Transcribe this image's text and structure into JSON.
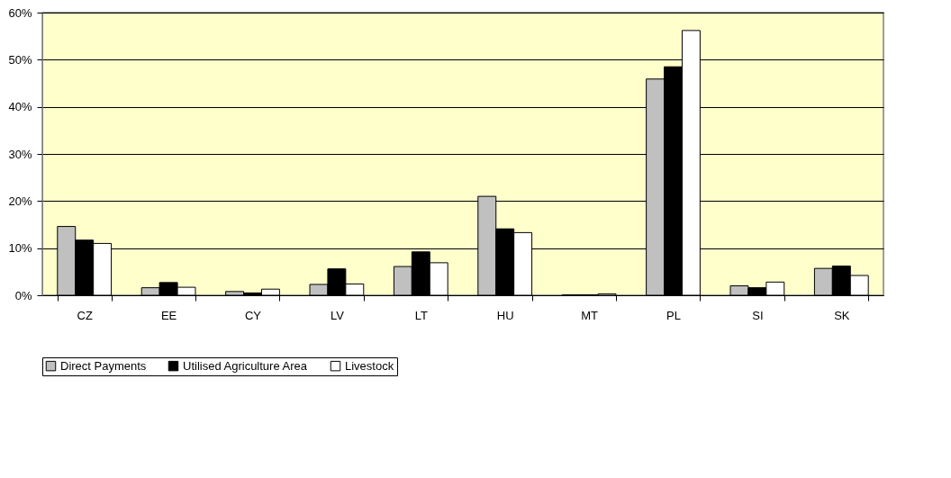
{
  "chart_data": {
    "type": "bar",
    "categories": [
      "CZ",
      "EE",
      "CY",
      "LV",
      "LT",
      "HU",
      "MT",
      "PL",
      "SI",
      "SK"
    ],
    "series": [
      {
        "name": "Direct Payments",
        "color": "#c0c0c0",
        "values": [
          14.6,
          1.6,
          0.8,
          2.3,
          6.1,
          21.0,
          0.1,
          45.9,
          2.0,
          5.7
        ]
      },
      {
        "name": "Utilised Agriculture Area",
        "color": "#000000",
        "values": [
          11.7,
          2.7,
          0.5,
          5.6,
          9.2,
          14.1,
          0.1,
          48.5,
          1.6,
          6.2
        ]
      },
      {
        "name": "Livestock",
        "color": "#ffffff",
        "values": [
          11.0,
          1.7,
          1.3,
          2.4,
          6.9,
          13.3,
          0.3,
          56.2,
          2.8,
          4.2
        ]
      }
    ],
    "ylim": [
      0,
      60
    ],
    "yticks": [
      {
        "value": 0,
        "label": "0%"
      },
      {
        "value": 10,
        "label": "10%"
      },
      {
        "value": 20,
        "label": "20%"
      },
      {
        "value": 30,
        "label": "30%"
      },
      {
        "value": 40,
        "label": "40%"
      },
      {
        "value": 50,
        "label": "50%"
      },
      {
        "value": 60,
        "label": "60%"
      }
    ],
    "grid": "y",
    "legend": "bottom"
  }
}
